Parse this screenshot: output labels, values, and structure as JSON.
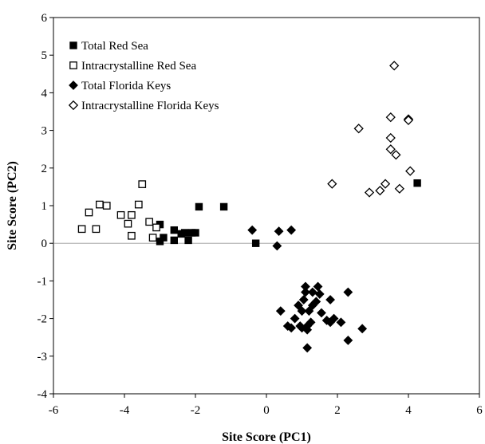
{
  "chart_data": {
    "type": "scatter",
    "title": "",
    "xlabel": "Site  Score  (PC1)",
    "ylabel": "Site  Score  (PC2)",
    "xlim": [
      -6,
      6
    ],
    "ylim": [
      -4,
      6
    ],
    "xticks": [
      "-6",
      "-4",
      "-2",
      "0",
      "2",
      "4",
      "6"
    ],
    "yticks": [
      "-4",
      "-3",
      "-2",
      "-1",
      "0",
      "1",
      "2",
      "3",
      "4",
      "5",
      "6"
    ],
    "grid": false,
    "zero_line": true,
    "legend_position": "top-left",
    "series": [
      {
        "name": "Total Red Sea",
        "marker": "filled-square",
        "points": [
          [
            -3.0,
            0.5
          ],
          [
            -2.9,
            0.15
          ],
          [
            -3.0,
            0.05
          ],
          [
            -2.6,
            0.35
          ],
          [
            -2.6,
            0.08
          ],
          [
            -2.4,
            0.25
          ],
          [
            -2.3,
            0.28
          ],
          [
            -2.2,
            0.08
          ],
          [
            -2.1,
            0.28
          ],
          [
            -2.0,
            0.28
          ],
          [
            -1.9,
            0.97
          ],
          [
            -1.2,
            0.97
          ],
          [
            -0.3,
            0.0
          ],
          [
            4.25,
            1.6
          ]
        ]
      },
      {
        "name": "Intracrystalline Red Sea",
        "marker": "open-square",
        "points": [
          [
            -5.2,
            0.38
          ],
          [
            -5.0,
            0.82
          ],
          [
            -4.8,
            0.38
          ],
          [
            -4.7,
            1.03
          ],
          [
            -4.5,
            1.0
          ],
          [
            -4.1,
            0.75
          ],
          [
            -3.9,
            0.52
          ],
          [
            -3.8,
            0.2
          ],
          [
            -3.8,
            0.75
          ],
          [
            -3.6,
            1.03
          ],
          [
            -3.5,
            1.57
          ],
          [
            -3.3,
            0.57
          ],
          [
            -3.2,
            0.15
          ],
          [
            -3.1,
            0.42
          ]
        ]
      },
      {
        "name": "Total Florida Keys",
        "marker": "filled-diamond",
        "points": [
          [
            -0.4,
            0.35
          ],
          [
            0.35,
            0.32
          ],
          [
            0.7,
            0.35
          ],
          [
            0.3,
            -0.07
          ],
          [
            1.1,
            -1.15
          ],
          [
            1.45,
            -1.15
          ],
          [
            1.1,
            -1.3
          ],
          [
            1.3,
            -1.3
          ],
          [
            1.5,
            -1.35
          ],
          [
            2.3,
            -1.3
          ],
          [
            1.05,
            -1.5
          ],
          [
            1.4,
            -1.55
          ],
          [
            0.9,
            -1.65
          ],
          [
            1.3,
            -1.65
          ],
          [
            1.8,
            -1.5
          ],
          [
            0.4,
            -1.8
          ],
          [
            1.0,
            -1.8
          ],
          [
            1.2,
            -1.8
          ],
          [
            0.8,
            -2.0
          ],
          [
            1.55,
            -1.85
          ],
          [
            1.7,
            -2.05
          ],
          [
            1.9,
            -2.0
          ],
          [
            1.8,
            -2.1
          ],
          [
            2.1,
            -2.1
          ],
          [
            0.6,
            -2.2
          ],
          [
            0.95,
            -2.2
          ],
          [
            1.15,
            -2.2
          ],
          [
            1.25,
            -2.1
          ],
          [
            0.7,
            -2.25
          ],
          [
            1.0,
            -2.25
          ],
          [
            1.15,
            -2.3
          ],
          [
            2.7,
            -2.27
          ],
          [
            2.3,
            -2.58
          ],
          [
            1.15,
            -2.78
          ]
        ]
      },
      {
        "name": "Intracrystalline Florida Keys",
        "marker": "open-diamond",
        "points": [
          [
            3.6,
            4.72
          ],
          [
            2.6,
            3.05
          ],
          [
            3.5,
            3.35
          ],
          [
            4.0,
            3.3
          ],
          [
            4.0,
            3.27
          ],
          [
            3.5,
            2.8
          ],
          [
            3.5,
            2.5
          ],
          [
            3.65,
            2.35
          ],
          [
            4.05,
            1.92
          ],
          [
            1.85,
            1.58
          ],
          [
            3.35,
            1.58
          ],
          [
            3.75,
            1.45
          ],
          [
            2.9,
            1.35
          ],
          [
            3.2,
            1.4
          ]
        ]
      }
    ]
  }
}
